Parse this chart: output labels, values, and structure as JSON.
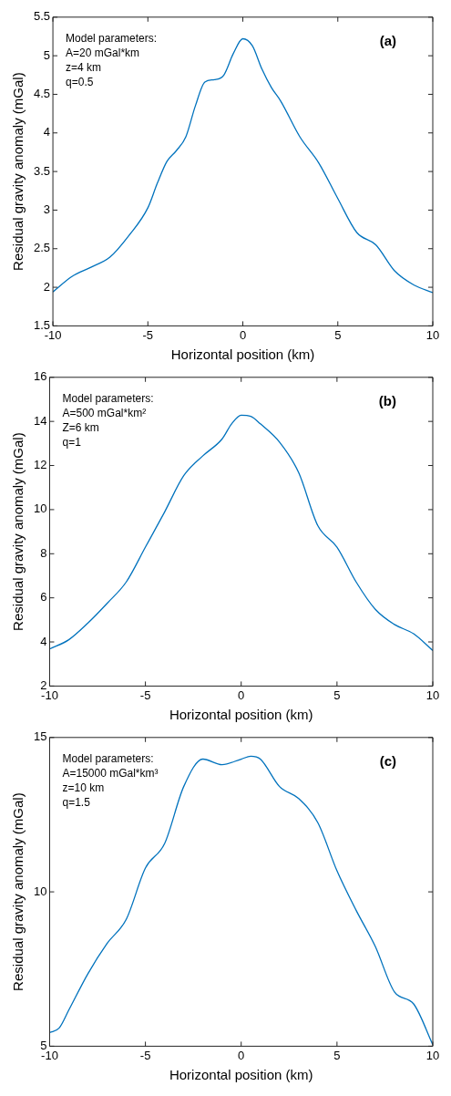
{
  "chart_data": [
    {
      "type": "line",
      "title": "(a)",
      "xlabel": "Horizontal position (km)",
      "ylabel": "Residual gravity anomaly (mGal)",
      "annotations": [
        "Model parameters:",
        "A=20 mGal*km",
        "z=4 km",
        "q=0.5"
      ],
      "x": [
        -10,
        -9,
        -8,
        -7,
        -6,
        -5,
        -4.5,
        -4,
        -3.5,
        -3,
        -2.5,
        -2,
        -1.5,
        -1,
        -0.5,
        0,
        0.5,
        1,
        1.5,
        2,
        3,
        4,
        5,
        6,
        7,
        8,
        9,
        10
      ],
      "series": [
        {
          "color": "#0072bd",
          "values": [
            1.94,
            2.14,
            2.26,
            2.39,
            2.67,
            3.03,
            3.35,
            3.63,
            3.77,
            3.95,
            4.35,
            4.66,
            4.69,
            4.75,
            5.03,
            5.22,
            5.13,
            4.83,
            4.59,
            4.41,
            3.95,
            3.61,
            3.15,
            2.71,
            2.55,
            2.21,
            2.03,
            1.93
          ]
        }
      ],
      "xlim": [
        -10,
        10
      ],
      "xticks": [
        -10,
        -5,
        0,
        5,
        10
      ],
      "ylim": [
        1.5,
        5.5
      ],
      "yticks": [
        1.5,
        2,
        2.5,
        3,
        3.5,
        4,
        4.5,
        5,
        5.5
      ],
      "marker": "none"
    },
    {
      "type": "line",
      "title": "(b)",
      "xlabel": "Horizontal position (km)",
      "ylabel": "Residual gravity anomaly (mGal)",
      "annotations": [
        "Model parameters:",
        "A=500 mGal*km²",
        "Z=6 km",
        "q=1"
      ],
      "x": [
        -10,
        -9,
        -8,
        -7,
        -6,
        -5,
        -4,
        -3,
        -2,
        -1,
        -0.5,
        0,
        0.5,
        1,
        2,
        3,
        4,
        5,
        6,
        7,
        8,
        9,
        10
      ],
      "series": [
        {
          "color": "#0072bd",
          "values": [
            3.68,
            4.1,
            4.86,
            5.75,
            6.72,
            8.3,
            9.89,
            11.54,
            12.44,
            13.2,
            13.89,
            14.28,
            14.23,
            13.89,
            13.06,
            11.68,
            9.27,
            8.3,
            6.72,
            5.48,
            4.79,
            4.37,
            3.61
          ]
        }
      ],
      "xlim": [
        -10,
        10
      ],
      "xticks": [
        -10,
        -5,
        0,
        5,
        10
      ],
      "ylim": [
        2,
        16
      ],
      "yticks": [
        2,
        4,
        6,
        8,
        10,
        12,
        14,
        16
      ],
      "marker": "none"
    },
    {
      "type": "line",
      "title": "(c)",
      "xlabel": "Horizontal position (km)",
      "ylabel": "Residual gravity anomaly (mGal)",
      "annotations": [
        "Model parameters:",
        "A=15000 mGal*km³",
        "z=10 km",
        "q=1.5"
      ],
      "x": [
        -10,
        -9.5,
        -9,
        -8,
        -7,
        -6,
        -5,
        -4,
        -3,
        -2,
        -1,
        0,
        0.5,
        1,
        2,
        3,
        4,
        5,
        6,
        7,
        8,
        9,
        10
      ],
      "series": [
        {
          "color": "#0072bd",
          "values": [
            5.44,
            5.59,
            6.17,
            7.35,
            8.33,
            9.11,
            10.77,
            11.56,
            13.41,
            14.3,
            14.12,
            14.3,
            14.39,
            14.3,
            13.41,
            13.02,
            12.24,
            10.68,
            9.4,
            8.23,
            6.76,
            6.37,
            5.05
          ]
        }
      ],
      "xlim": [
        -10,
        10
      ],
      "xticks": [
        -10,
        -5,
        0,
        5,
        10
      ],
      "ylim": [
        5,
        15
      ],
      "yticks": [
        5,
        10,
        15
      ],
      "marker": "none"
    }
  ]
}
